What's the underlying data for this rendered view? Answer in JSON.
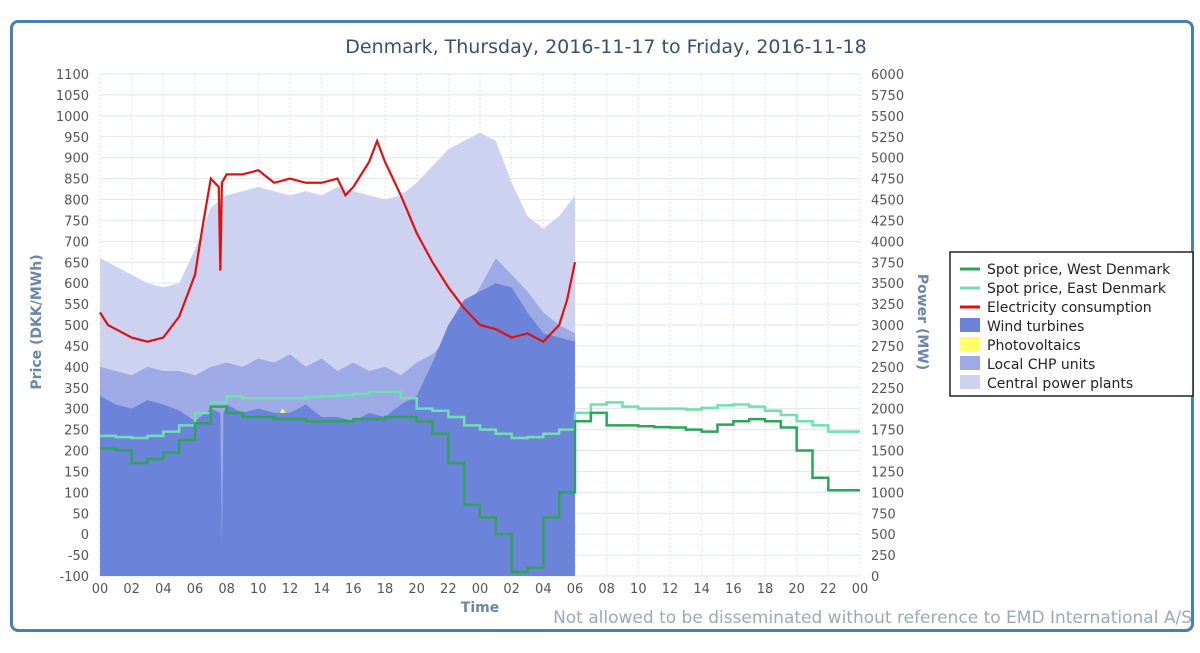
{
  "chart_data": {
    "type": "area+line",
    "title": "Denmark, Thursday, 2016-11-17 to Friday, 2016-11-18",
    "xlabel": "Time",
    "ylabel_left": "Price (DKK/MWh)",
    "ylabel_right": "Power (MW)",
    "ylim_left": [
      -100,
      1100
    ],
    "ylim_right": [
      0,
      6000
    ],
    "yticks_left": [
      -100,
      -50,
      0,
      50,
      100,
      150,
      200,
      250,
      300,
      350,
      400,
      450,
      500,
      550,
      600,
      650,
      700,
      750,
      800,
      850,
      900,
      950,
      1000,
      1050,
      1100
    ],
    "yticks_right": [
      0,
      250,
      500,
      750,
      1000,
      1250,
      1500,
      1750,
      2000,
      2250,
      2500,
      2750,
      3000,
      3250,
      3500,
      3750,
      4000,
      4250,
      4500,
      4750,
      5000,
      5250,
      5500,
      5750,
      6000
    ],
    "xlim_hours": [
      0,
      48
    ],
    "xtick_hours": [
      0,
      2,
      4,
      6,
      8,
      10,
      12,
      14,
      16,
      18,
      20,
      22,
      24,
      26,
      28,
      30,
      32,
      34,
      36,
      38,
      40,
      42,
      44,
      46,
      48
    ],
    "xtick_labels": [
      "00",
      "02",
      "04",
      "06",
      "08",
      "10",
      "12",
      "14",
      "16",
      "18",
      "20",
      "22",
      "00",
      "02",
      "04",
      "06",
      "08",
      "10",
      "12",
      "14",
      "16",
      "18",
      "20",
      "22",
      "00"
    ],
    "grid": true,
    "legend_position": "right",
    "legend": [
      {
        "name": "Spot price, West Denmark",
        "color": "#2fa35a",
        "kind": "line"
      },
      {
        "name": "Spot price, East Denmark",
        "color": "#6fe0b0",
        "kind": "line"
      },
      {
        "name": "Electricity consumption",
        "color": "#e01010",
        "kind": "line"
      },
      {
        "name": "Wind turbines",
        "color": "#6b84d9",
        "kind": "area"
      },
      {
        "name": "Photovoltaics",
        "color": "#ffff66",
        "kind": "area"
      },
      {
        "name": "Local CHP units",
        "color": "#9daae6",
        "kind": "area"
      },
      {
        "name": "Central power plants",
        "color": "#ccd2f0",
        "kind": "area"
      }
    ],
    "series": {
      "wind_turbines_mw": {
        "x": [
          0,
          1,
          2,
          3,
          4,
          5,
          6,
          7,
          7.6,
          7.7,
          7.8,
          8,
          9,
          10,
          11,
          12,
          13,
          14,
          15,
          16,
          17,
          18,
          19,
          20,
          21,
          22,
          23,
          24,
          25,
          26,
          27,
          28,
          29,
          30
        ],
        "y": [
          2150,
          2050,
          2000,
          2100,
          2050,
          1980,
          1850,
          2000,
          1950,
          400,
          1950,
          2050,
          1950,
          2000,
          1950,
          1950,
          2050,
          1900,
          1900,
          1850,
          1950,
          1900,
          2050,
          2150,
          2550,
          3000,
          3300,
          3400,
          3500,
          3450,
          3150,
          2900,
          2850,
          2800
        ]
      },
      "photovoltaics_top_mw": {
        "x": [
          8.5,
          9,
          9.5,
          10,
          10.5,
          11,
          11.5,
          12,
          12.5,
          13,
          13.5,
          14,
          14.5,
          15
        ],
        "y": [
          1950,
          1900,
          1850,
          1950,
          1900,
          1800,
          2000,
          1900,
          1800,
          1850,
          1900,
          1700,
          1850,
          1900
        ]
      },
      "local_chp_top_mw": {
        "x": [
          0,
          1,
          2,
          3,
          4,
          5,
          6,
          7,
          8,
          9,
          10,
          11,
          12,
          13,
          14,
          15,
          16,
          17,
          18,
          19,
          20,
          21,
          22,
          23,
          24,
          25,
          26,
          27,
          28,
          29,
          30
        ],
        "y": [
          2500,
          2450,
          2400,
          2500,
          2450,
          2450,
          2400,
          2500,
          2550,
          2500,
          2600,
          2550,
          2650,
          2500,
          2600,
          2450,
          2550,
          2450,
          2500,
          2400,
          2550,
          2650,
          2850,
          3150,
          3450,
          3800,
          3600,
          3400,
          3150,
          3000,
          2900
        ]
      },
      "central_top_mw": {
        "x": [
          0,
          1,
          2,
          3,
          4,
          5,
          6,
          7,
          8,
          9,
          10,
          11,
          12,
          13,
          14,
          15,
          16,
          17,
          18,
          19,
          20,
          21,
          22,
          23,
          24,
          25,
          26,
          27,
          28,
          29,
          30
        ],
        "y": [
          3800,
          3700,
          3600,
          3500,
          3450,
          3500,
          3900,
          4400,
          4550,
          4600,
          4650,
          4600,
          4550,
          4600,
          4550,
          4650,
          4600,
          4550,
          4500,
          4550,
          4700,
          4900,
          5100,
          5200,
          5300,
          5200,
          4700,
          4300,
          4150,
          4300,
          4550
        ]
      },
      "electricity_consumption_mw": {
        "x": [
          0,
          0.5,
          1,
          2,
          3,
          4,
          5,
          6,
          6.5,
          7,
          7.5,
          7.6,
          7.7,
          8,
          9,
          10,
          11,
          12,
          13,
          14,
          15,
          15.5,
          16,
          17,
          17.5,
          18,
          19,
          20,
          21,
          22,
          23,
          24,
          25,
          26,
          27,
          28,
          29,
          29.5,
          30
        ],
        "y": [
          3150,
          3000,
          2950,
          2850,
          2800,
          2850,
          3100,
          3600,
          4200,
          4750,
          4650,
          3650,
          4700,
          4800,
          4800,
          4850,
          4700,
          4750,
          4700,
          4700,
          4750,
          4550,
          4650,
          4950,
          5200,
          4950,
          4550,
          4100,
          3750,
          3450,
          3200,
          3000,
          2950,
          2850,
          2900,
          2800,
          3000,
          3300,
          3750
        ]
      },
      "spot_price_west_dkk": {
        "x": [
          0,
          1,
          2,
          3,
          4,
          5,
          6,
          7,
          8,
          9,
          10,
          11,
          12,
          13,
          14,
          15,
          16,
          17,
          18,
          19,
          20,
          21,
          22,
          23,
          24,
          25,
          26,
          27,
          28,
          29,
          30,
          31,
          32,
          33,
          34,
          35,
          36,
          37,
          38,
          39,
          40,
          41,
          42,
          43,
          44,
          45,
          46,
          47
        ],
        "y": [
          205,
          200,
          170,
          180,
          195,
          225,
          265,
          305,
          290,
          280,
          280,
          275,
          275,
          270,
          270,
          270,
          275,
          275,
          280,
          280,
          270,
          240,
          170,
          70,
          40,
          0,
          -90,
          -80,
          40,
          100,
          270,
          290,
          260,
          260,
          258,
          256,
          255,
          250,
          245,
          262,
          270,
          275,
          270,
          255,
          200,
          135,
          105,
          105
        ]
      },
      "spot_price_east_dkk": {
        "x": [
          0,
          1,
          2,
          3,
          4,
          5,
          6,
          7,
          8,
          9,
          10,
          11,
          12,
          13,
          14,
          15,
          16,
          17,
          18,
          19,
          20,
          21,
          22,
          23,
          24,
          25,
          26,
          27,
          28,
          29,
          30,
          31,
          32,
          33,
          34,
          35,
          36,
          37,
          38,
          39,
          40,
          41,
          42,
          43,
          44,
          45,
          46,
          47
        ],
        "y": [
          235,
          232,
          230,
          235,
          245,
          260,
          290,
          315,
          330,
          325,
          325,
          325,
          325,
          328,
          330,
          332,
          335,
          340,
          340,
          325,
          300,
          295,
          280,
          260,
          250,
          240,
          230,
          232,
          240,
          250,
          290,
          310,
          315,
          305,
          300,
          300,
          300,
          298,
          302,
          308,
          310,
          305,
          295,
          285,
          270,
          260,
          245,
          245
        ]
      }
    }
  },
  "legend_labels": {
    "west": "Spot price, West Denmark",
    "east": "Spot price, East Denmark",
    "consumption": "Electricity consumption",
    "wind": "Wind turbines",
    "pv": "Photovoltaics",
    "chp": "Local CHP units",
    "central": "Central power plants"
  },
  "watermark": "Not allowed to be disseminated without reference to EMD International A/S"
}
